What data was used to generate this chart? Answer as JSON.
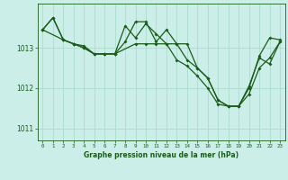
{
  "bg_color": "#cceee8",
  "plot_bg_color": "#cceee8",
  "grid_color": "#aaddcc",
  "line_color": "#1a5c1a",
  "title": "Graphe pression niveau de la mer (hPa)",
  "title_color": "#1a5c1a",
  "xlim": [
    -0.5,
    23.5
  ],
  "ylim": [
    1010.7,
    1014.1
  ],
  "yticks": [
    1011,
    1012,
    1013
  ],
  "xticks": [
    0,
    1,
    2,
    3,
    4,
    5,
    6,
    7,
    8,
    9,
    10,
    11,
    12,
    13,
    14,
    15,
    16,
    17,
    18,
    19,
    20,
    21,
    22,
    23
  ],
  "series1_x": [
    0,
    1,
    2,
    3,
    4,
    5,
    6,
    7,
    8,
    9,
    10,
    11,
    12,
    13,
    14,
    15,
    16,
    17,
    18,
    19,
    20,
    21,
    22,
    23
  ],
  "series1_y": [
    1013.45,
    1013.75,
    1013.2,
    1013.1,
    1013.0,
    1012.85,
    1012.85,
    1012.85,
    1013.15,
    1013.65,
    1013.65,
    1013.15,
    1013.45,
    1013.1,
    1012.7,
    1012.5,
    1012.25,
    1011.7,
    1011.55,
    1011.55,
    1012.0,
    1012.8,
    1013.25,
    1013.2
  ],
  "series2_x": [
    0,
    2,
    3,
    4,
    5,
    6,
    7,
    9,
    10,
    11,
    12,
    13,
    14,
    15,
    16,
    17,
    18,
    19,
    20,
    21,
    22,
    23
  ],
  "series2_y": [
    1013.45,
    1013.2,
    1013.1,
    1013.05,
    1012.85,
    1012.85,
    1012.85,
    1013.1,
    1013.1,
    1013.1,
    1013.1,
    1013.1,
    1013.1,
    1012.5,
    1012.25,
    1011.7,
    1011.55,
    1011.55,
    1011.85,
    1012.5,
    1012.75,
    1013.15
  ],
  "series3_x": [
    0,
    1,
    2,
    3,
    4,
    5,
    6,
    7,
    8,
    9,
    10,
    11,
    12,
    13,
    14,
    15,
    16,
    17,
    18,
    19,
    20,
    21,
    22,
    23
  ],
  "series3_y": [
    1013.45,
    1013.75,
    1013.2,
    1013.1,
    1013.0,
    1012.85,
    1012.85,
    1012.85,
    1013.55,
    1013.25,
    1013.6,
    1013.35,
    1013.1,
    1012.7,
    1012.55,
    1012.3,
    1012.0,
    1011.6,
    1011.55,
    1011.55,
    1012.05,
    1012.75,
    1012.6,
    1013.15
  ]
}
